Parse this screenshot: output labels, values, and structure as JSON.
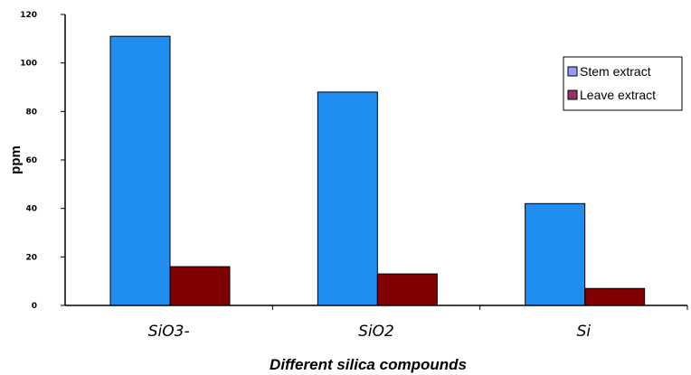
{
  "chart_data": {
    "type": "bar",
    "categories": [
      "SiO3-",
      "SiO2",
      "Si"
    ],
    "series": [
      {
        "name": "Stem extract",
        "values": [
          111,
          88,
          42
        ],
        "color": "#1f8ef0"
      },
      {
        "name": "Leave extract",
        "values": [
          16,
          13,
          7
        ],
        "color": "#800000"
      }
    ],
    "xlabel": "Different silica compounds",
    "ylabel": "ppm",
    "ylim": [
      0,
      120
    ],
    "yticks": [
      "0",
      "20",
      "40",
      "60",
      "80",
      "100",
      "120"
    ],
    "grid": false,
    "legend_position": "top-right"
  }
}
